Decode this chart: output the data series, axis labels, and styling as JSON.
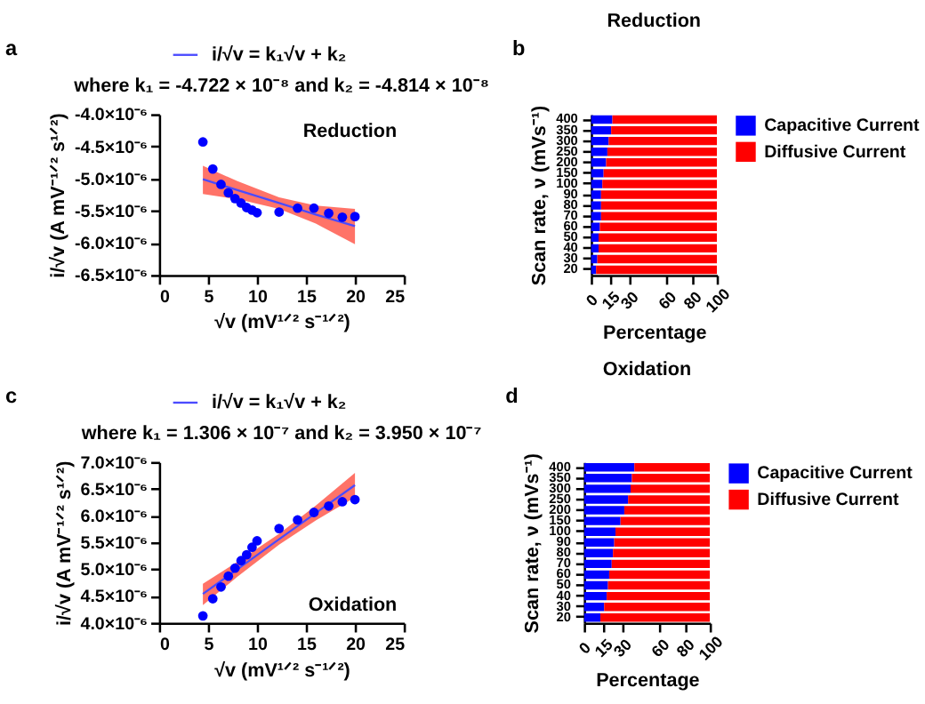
{
  "chart_data": [
    {
      "type": "scatter",
      "subtitle": "where k₁ = -4.722 × 10⁻⁸   and k₂ = -4.814 × 10⁻⁸",
      "xlabel": "√v (mV¹ᐟ² s⁻¹ᐟ²)",
      "ylabel": "i/√v (A mV⁻¹ᐟ² s¹ᐟ²)",
      "annotations": [
        "a",
        "Reduction"
      ],
      "xlim": [
        0,
        25
      ],
      "xticks": [
        0,
        5,
        10,
        15,
        20,
        25
      ],
      "ylim": [
        -6.5e-06,
        -4e-06
      ],
      "yticks": [
        {
          "value": -6.5e-06,
          "label": "-6.5×10⁻⁶"
        },
        {
          "value": -6e-06,
          "label": "-6.0×10⁻⁶"
        },
        {
          "value": -5.5e-06,
          "label": "-5.5×10⁻⁶"
        },
        {
          "value": -5e-06,
          "label": "-5.0×10⁻⁶"
        },
        {
          "value": -4.5e-06,
          "label": "-4.5×10⁻⁶"
        },
        {
          "value": -4e-06,
          "label": "-4.0×10⁻⁶"
        }
      ],
      "legend": "top",
      "series": [
        {
          "type": "scatter",
          "marker": "circle",
          "color": "#0000ff",
          "x": [
            4.47,
            5.48,
            6.32,
            7.07,
            7.75,
            8.37,
            8.94,
            9.49,
            10,
            12.25,
            14.14,
            15.81,
            17.32,
            18.71,
            20
          ],
          "values": [
            -4.43e-06,
            -4.85e-06,
            -5.09e-06,
            -5.22e-06,
            -5.31e-06,
            -5.38e-06,
            -5.45e-06,
            -5.49e-06,
            -5.53e-06,
            -5.52e-06,
            -5.46e-06,
            -5.46e-06,
            -5.54e-06,
            -5.6e-06,
            -5.59e-06
          ]
        },
        {
          "type": "line",
          "name": "i/√v = k₁√v + k₂",
          "color": "#4b4bff",
          "x": [
            4.47,
            8,
            12.25,
            16,
            20
          ],
          "values": [
            -5.01e-06,
            -5.18e-06,
            -5.38e-06,
            -5.56e-06,
            -5.74e-06
          ],
          "lower": [
            -5.24e-06,
            -5.32e-06,
            -5.47e-06,
            -5.7e-06,
            -6.02e-06
          ],
          "upper": [
            -4.8e-06,
            -5.04e-06,
            -5.29e-06,
            -5.42e-06,
            -5.47e-06
          ]
        }
      ]
    },
    {
      "type": "bar",
      "orientation": "horizontal",
      "stacked": true,
      "title": "Reduction",
      "xlabel": "Percentage",
      "ylabel": "Scan rate, ν (mVs⁻¹)",
      "annotations": [
        "b"
      ],
      "categories": [
        "400",
        "350",
        "300",
        "250",
        "200",
        "150",
        "100",
        "90",
        "80",
        "70",
        "60",
        "50",
        "40",
        "30",
        "20"
      ],
      "xlim": [
        0,
        100
      ],
      "xticks": [
        0,
        15,
        30,
        60,
        80,
        100
      ],
      "legend": "right",
      "series": [
        {
          "name": "Capacitive Current",
          "color": "#0000ff",
          "values": [
            17,
            16,
            14,
            13,
            12,
            10,
            9,
            8,
            8,
            8,
            7,
            6,
            6,
            5,
            4
          ]
        },
        {
          "name": "Diffusive Current",
          "color": "#ff0000",
          "values": [
            83,
            84,
            86,
            87,
            88,
            90,
            91,
            92,
            92,
            92,
            93,
            94,
            94,
            95,
            96
          ]
        }
      ]
    },
    {
      "type": "scatter",
      "subtitle": "where k₁ = 1.306 × 10⁻⁷   and k₂ = 3.950 × 10⁻⁷",
      "xlabel": "√v (mV¹ᐟ² s⁻¹ᐟ²)",
      "ylabel": "i/√v (A mV⁻¹ᐟ² s¹ᐟ²)",
      "annotations": [
        "c",
        "Oxidation"
      ],
      "xlim": [
        0,
        25
      ],
      "xticks": [
        0,
        5,
        10,
        15,
        20,
        25
      ],
      "ylim": [
        4e-06,
        7e-06
      ],
      "yticks": [
        {
          "value": 4e-06,
          "label": "4.0×10⁻⁶"
        },
        {
          "value": 4.5e-06,
          "label": "4.5×10⁻⁶"
        },
        {
          "value": 5e-06,
          "label": "5.0×10⁻⁶"
        },
        {
          "value": 5.5e-06,
          "label": "5.5×10⁻⁶"
        },
        {
          "value": 6e-06,
          "label": "6.0×10⁻⁶"
        },
        {
          "value": 6.5e-06,
          "label": "6.5×10⁻⁶"
        },
        {
          "value": 7e-06,
          "label": "7.0×10⁻⁶"
        }
      ],
      "legend": "top",
      "series": [
        {
          "type": "scatter",
          "marker": "circle",
          "color": "#0000ff",
          "x": [
            4.47,
            5.48,
            6.32,
            7.07,
            7.75,
            8.37,
            8.94,
            9.49,
            10,
            12.25,
            14.14,
            15.81,
            17.32,
            18.71,
            20
          ],
          "values": [
            4.13e-06,
            4.45e-06,
            4.67e-06,
            4.87e-06,
            5.02e-06,
            5.16e-06,
            5.27e-06,
            5.41e-06,
            5.53e-06,
            5.76e-06,
            5.92e-06,
            6.06e-06,
            6.18e-06,
            6.26e-06,
            6.3e-06
          ]
        },
        {
          "type": "line",
          "name": "i/√v = k₁√v + k₂",
          "color": "#4b4bff",
          "x": [
            4.47,
            8,
            12.25,
            16,
            20
          ],
          "values": [
            4.54e-06,
            5e-06,
            5.56e-06,
            6.05e-06,
            6.57e-06
          ],
          "lower": [
            4.33e-06,
            4.86e-06,
            5.46e-06,
            5.91e-06,
            6.34e-06
          ],
          "upper": [
            4.73e-06,
            5.14e-06,
            5.66e-06,
            6.19e-06,
            6.8e-06
          ]
        }
      ]
    },
    {
      "type": "bar",
      "orientation": "horizontal",
      "stacked": true,
      "title": "Oxidation",
      "xlabel": "Percentage",
      "ylabel": "Scan rate, ν (mVs⁻¹)",
      "annotations": [
        "d"
      ],
      "categories": [
        "400",
        "350",
        "300",
        "250",
        "200",
        "150",
        "100",
        "90",
        "80",
        "70",
        "60",
        "50",
        "40",
        "30",
        "20"
      ],
      "xlim": [
        0,
        100
      ],
      "xticks": [
        0,
        15,
        30,
        60,
        80,
        100
      ],
      "legend": "right",
      "series": [
        {
          "name": "Capacitive Current",
          "color": "#0000ff",
          "values": [
            40,
            38,
            37,
            35,
            32,
            29,
            25,
            24,
            23,
            22,
            20,
            19,
            18,
            16,
            13
          ]
        },
        {
          "name": "Diffusive Current",
          "color": "#ff0000",
          "values": [
            60,
            62,
            63,
            65,
            68,
            71,
            75,
            76,
            77,
            78,
            80,
            81,
            82,
            84,
            87
          ]
        }
      ]
    }
  ]
}
